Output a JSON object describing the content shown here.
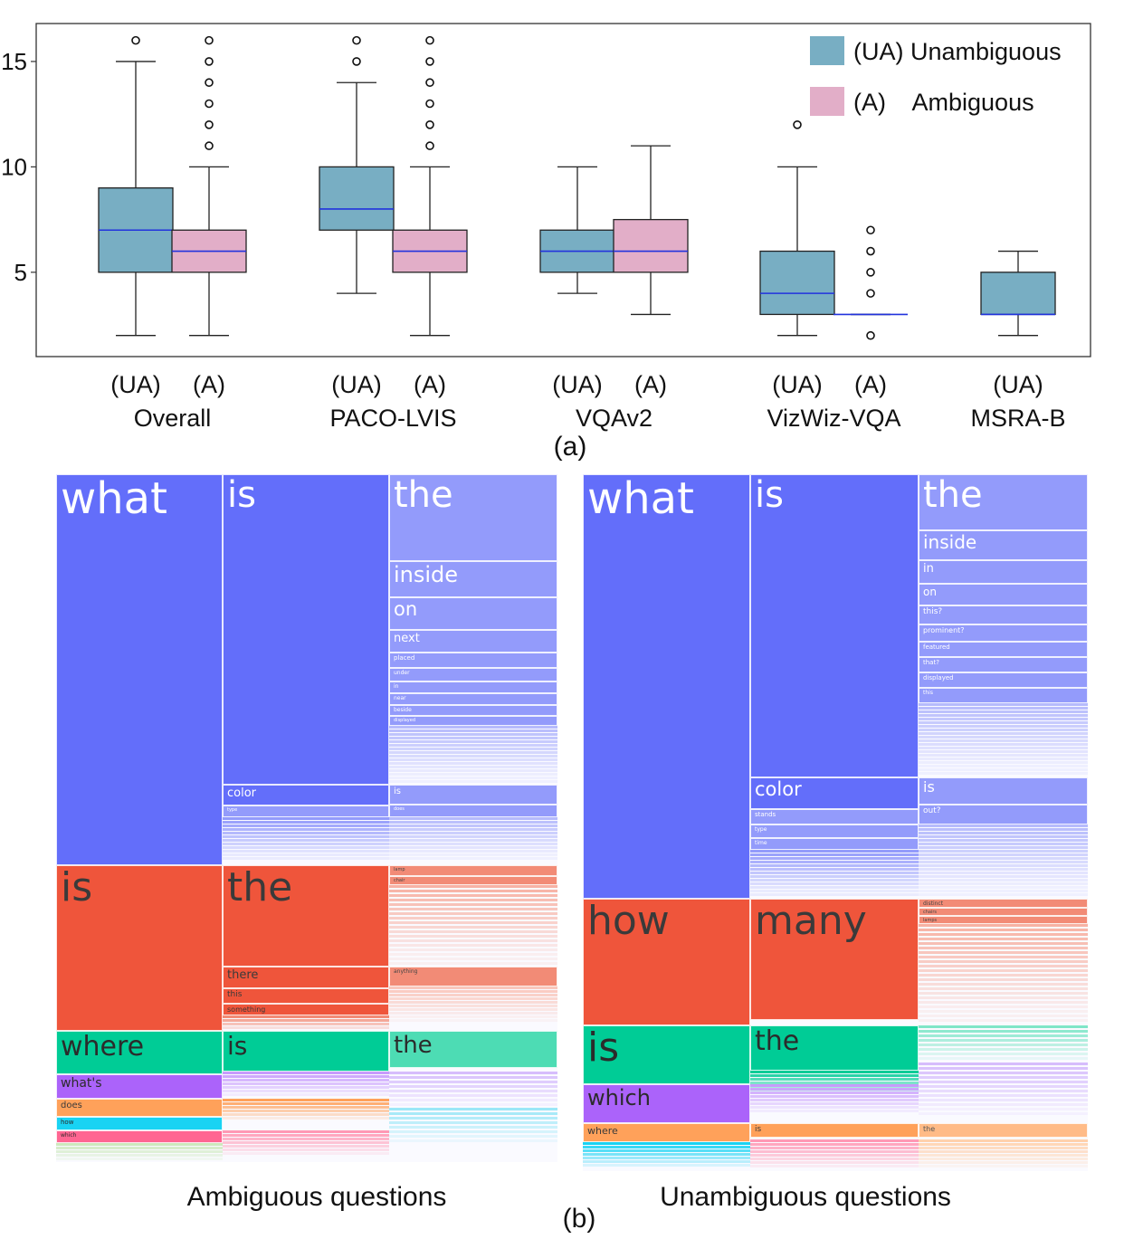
{
  "panel_a_label": "(a)",
  "panel_b_label": "(b)",
  "chart_data": {
    "type": "box",
    "title": "",
    "xlabel": "",
    "ylabel": "",
    "ylim": [
      1,
      16.8
    ],
    "yticks": [
      5,
      10,
      15
    ],
    "legend": [
      {
        "label": "(UA) Unambiguous",
        "color": "#78aec3"
      },
      {
        "label": "(A)    Ambiguous",
        "color": "#e2aec8"
      }
    ],
    "groups": [
      {
        "name": "Overall",
        "boxes": [
          {
            "label": "(UA)",
            "series": "UA",
            "min": 2,
            "q1": 5,
            "median": 7,
            "q3": 9,
            "max": 15,
            "outliers": [
              16
            ]
          },
          {
            "label": "(A)",
            "series": "A",
            "min": 2,
            "q1": 5,
            "median": 6,
            "q3": 7,
            "max": 10,
            "outliers": [
              11,
              12,
              13,
              14,
              15,
              16
            ]
          }
        ]
      },
      {
        "name": "PACO-LVIS",
        "boxes": [
          {
            "label": "(UA)",
            "series": "UA",
            "min": 4,
            "q1": 7,
            "median": 8,
            "q3": 10,
            "max": 14,
            "outliers": [
              15,
              16
            ]
          },
          {
            "label": "(A)",
            "series": "A",
            "min": 2,
            "q1": 5,
            "median": 6,
            "q3": 7,
            "max": 10,
            "outliers": [
              11,
              12,
              13,
              14,
              15,
              16
            ]
          }
        ]
      },
      {
        "name": "VQAv2",
        "boxes": [
          {
            "label": "(UA)",
            "series": "UA",
            "min": 4,
            "q1": 5,
            "median": 6,
            "q3": 7,
            "max": 10,
            "outliers": []
          },
          {
            "label": "(A)",
            "series": "A",
            "min": 3,
            "q1": 5,
            "median": 6,
            "q3": 7.5,
            "max": 11,
            "outliers": []
          }
        ]
      },
      {
        "name": "VizWiz-VQA",
        "boxes": [
          {
            "label": "(UA)",
            "series": "UA",
            "min": 2,
            "q1": 3,
            "median": 4,
            "q3": 6,
            "max": 10,
            "outliers": [
              12
            ]
          },
          {
            "label": "(A)",
            "series": "A",
            "min": 3,
            "q1": 3,
            "median": 3,
            "q3": 3,
            "max": 3,
            "outliers": [
              2,
              4,
              5,
              6,
              7
            ]
          }
        ]
      },
      {
        "name": "MSRA-B",
        "boxes": [
          {
            "label": "(UA)",
            "series": "UA",
            "min": 2,
            "q1": 3,
            "median": 3,
            "q3": 5,
            "max": 6,
            "outliers": []
          }
        ]
      }
    ]
  },
  "treemaps": {
    "ambiguous": {
      "caption": "Ambiguous questions",
      "words": [
        {
          "text": "what",
          "color": "#636efa"
        },
        {
          "text": "is",
          "color": "#636efa"
        },
        {
          "text": "the",
          "color": "#939bfb"
        },
        {
          "text": "inside",
          "color": "#939bfb"
        },
        {
          "text": "on",
          "color": "#939bfb"
        },
        {
          "text": "next",
          "color": "#939bfb"
        },
        {
          "text": "placed",
          "color": "#939bfb"
        },
        {
          "text": "under",
          "color": "#939bfb"
        },
        {
          "text": "in",
          "color": "#939bfb"
        },
        {
          "text": "near",
          "color": "#939bfb"
        },
        {
          "text": "beside",
          "color": "#939bfb"
        },
        {
          "text": "displayed",
          "color": "#939bfb"
        },
        {
          "text": "color",
          "color": "#636efa"
        },
        {
          "text": "is",
          "color": "#939bfb"
        },
        {
          "text": "type",
          "color": "#939bfb"
        },
        {
          "text": "does",
          "color": "#939bfb"
        },
        {
          "text": "is",
          "color": "#ef553b"
        },
        {
          "text": "the",
          "color": "#ef553b"
        },
        {
          "text": "there",
          "color": "#ef553b"
        },
        {
          "text": "this",
          "color": "#ef553b"
        },
        {
          "text": "something",
          "color": "#ef553b"
        },
        {
          "text": "lamp",
          "color": "#f28b76"
        },
        {
          "text": "chair",
          "color": "#f28b76"
        },
        {
          "text": "anything",
          "color": "#f28b76"
        },
        {
          "text": "where",
          "color": "#00cc96"
        },
        {
          "text": "is",
          "color": "#00cc96"
        },
        {
          "text": "the",
          "color": "#4ddcb4"
        },
        {
          "text": "what's",
          "color": "#ab63fa"
        },
        {
          "text": "does",
          "color": "#ffa15a"
        },
        {
          "text": "how",
          "color": "#19d3f3"
        },
        {
          "text": "which",
          "color": "#ff6692"
        }
      ]
    },
    "unambiguous": {
      "caption": "Unambiguous questions",
      "words": [
        {
          "text": "what",
          "color": "#636efa"
        },
        {
          "text": "is",
          "color": "#636efa"
        },
        {
          "text": "the",
          "color": "#939bfb"
        },
        {
          "text": "inside",
          "color": "#939bfb"
        },
        {
          "text": "in",
          "color": "#939bfb"
        },
        {
          "text": "on",
          "color": "#939bfb"
        },
        {
          "text": "this?",
          "color": "#939bfb"
        },
        {
          "text": "prominent?",
          "color": "#939bfb"
        },
        {
          "text": "featured",
          "color": "#939bfb"
        },
        {
          "text": "that?",
          "color": "#939bfb"
        },
        {
          "text": "displayed",
          "color": "#939bfb"
        },
        {
          "text": "this",
          "color": "#939bfb"
        },
        {
          "text": "color",
          "color": "#636efa"
        },
        {
          "text": "is",
          "color": "#939bfb"
        },
        {
          "text": "stands",
          "color": "#939bfb"
        },
        {
          "text": "out?",
          "color": "#939bfb"
        },
        {
          "text": "type",
          "color": "#939bfb"
        },
        {
          "text": "time",
          "color": "#939bfb"
        },
        {
          "text": "how",
          "color": "#ef553b"
        },
        {
          "text": "many",
          "color": "#ef553b"
        },
        {
          "text": "distinct",
          "color": "#f28b76"
        },
        {
          "text": "chairs",
          "color": "#f28b76"
        },
        {
          "text": "lamps",
          "color": "#f28b76"
        },
        {
          "text": "is",
          "color": "#00cc96"
        },
        {
          "text": "the",
          "color": "#00cc96"
        },
        {
          "text": "which",
          "color": "#ab63fa"
        },
        {
          "text": "where",
          "color": "#ffa15a"
        },
        {
          "text": "is",
          "color": "#ffa15a"
        },
        {
          "text": "the",
          "color": "#ffbb87"
        }
      ]
    }
  }
}
